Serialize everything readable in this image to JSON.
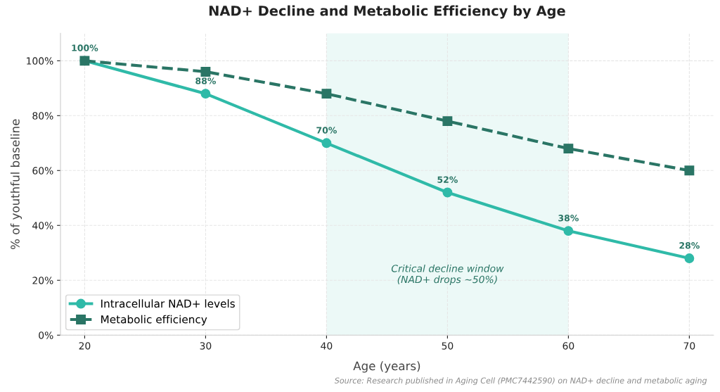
{
  "chart_data": {
    "type": "line",
    "title": "NAD+ Decline and Metabolic Efficiency by Age",
    "xlabel": "Age (years)",
    "ylabel": "% of youthful baseline",
    "x": [
      20,
      30,
      40,
      50,
      60,
      70
    ],
    "series": [
      {
        "name": "Intracellular NAD+ levels",
        "color": "#2fbaa8",
        "values": [
          100,
          88,
          70,
          52,
          38,
          28
        ],
        "marker": "circle",
        "line_style": "solid",
        "value_labels": [
          "100%",
          "88%",
          "70%",
          "52%",
          "38%",
          "28%"
        ]
      },
      {
        "name": "Metabolic efficiency",
        "color": "#2a7565",
        "values": [
          100,
          96,
          88,
          78,
          68,
          60
        ],
        "marker": "square",
        "line_style": "dashed"
      }
    ],
    "xlim": [
      18,
      72
    ],
    "xticks": [
      20,
      30,
      40,
      50,
      60,
      70
    ],
    "ylim": [
      0,
      110
    ],
    "yticks": [
      {
        "value": 0,
        "label": "0%"
      },
      {
        "value": 20,
        "label": "20%"
      },
      {
        "value": 40,
        "label": "40%"
      },
      {
        "value": 60,
        "label": "60%"
      },
      {
        "value": 80,
        "label": "80%"
      },
      {
        "value": 100,
        "label": "100%"
      }
    ],
    "bands": [
      {
        "axis": "x",
        "from": 40,
        "to": 60,
        "label": "Critical decline window\n(NAD+ drops ~50%)",
        "color": "#e0f5f1"
      }
    ],
    "annotations": [
      "Source: Research published in Aging Cell (PMC7442590) on NAD+ decline and metabolic aging"
    ],
    "grid": true,
    "legend": "lower left"
  }
}
